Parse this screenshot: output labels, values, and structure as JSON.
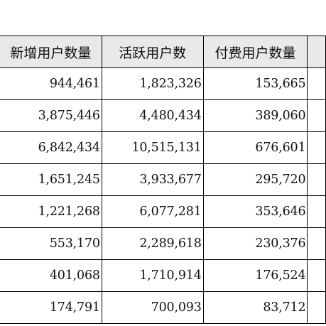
{
  "table": {
    "headers": [
      "新增用户数量",
      "活跃用户数",
      "付费用户数量",
      ""
    ],
    "rows": [
      {
        "new_users": "944,461",
        "active_users": "1,823,326",
        "paying_users": "153,665"
      },
      {
        "new_users": "3,875,446",
        "active_users": "4,480,434",
        "paying_users": "389,060"
      },
      {
        "new_users": "6,842,434",
        "active_users": "10,515,131",
        "paying_users": "676,601"
      },
      {
        "new_users": "1,651,245",
        "active_users": "3,933,677",
        "paying_users": "295,720"
      },
      {
        "new_users": "1,221,268",
        "active_users": "6,077,281",
        "paying_users": "353,646"
      },
      {
        "new_users": "553,170",
        "active_users": "2,289,618",
        "paying_users": "230,376"
      },
      {
        "new_users": "401,068",
        "active_users": "1,710,914",
        "paying_users": "176,524"
      },
      {
        "new_users": "174,791",
        "active_users": "700,093",
        "paying_users": "83,712"
      }
    ]
  },
  "colors": {
    "header_bg": "#e9e9e9",
    "border": "#000000",
    "text": "#111111"
  }
}
